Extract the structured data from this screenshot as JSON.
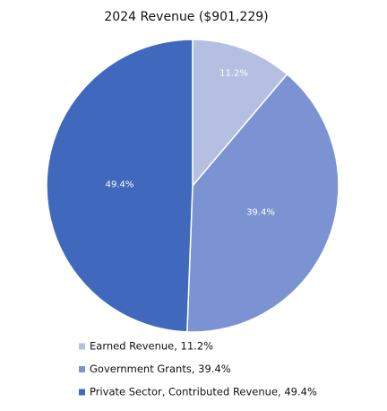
{
  "chart_data": {
    "type": "pie",
    "title": "2024 Revenue ($901,229)",
    "categories": [
      "Earned Revenue, 11.2%",
      "Government Grants, 39.4%",
      "Private Sector, Contributed Revenue, 49.4%"
    ],
    "values": [
      11.2,
      39.4,
      49.4
    ],
    "value_labels": [
      "11.2%",
      "39.4%",
      "49.4%"
    ],
    "colors": [
      "#b4bfe2",
      "#7b93d3",
      "#4069bd"
    ],
    "legend": "bottom"
  }
}
